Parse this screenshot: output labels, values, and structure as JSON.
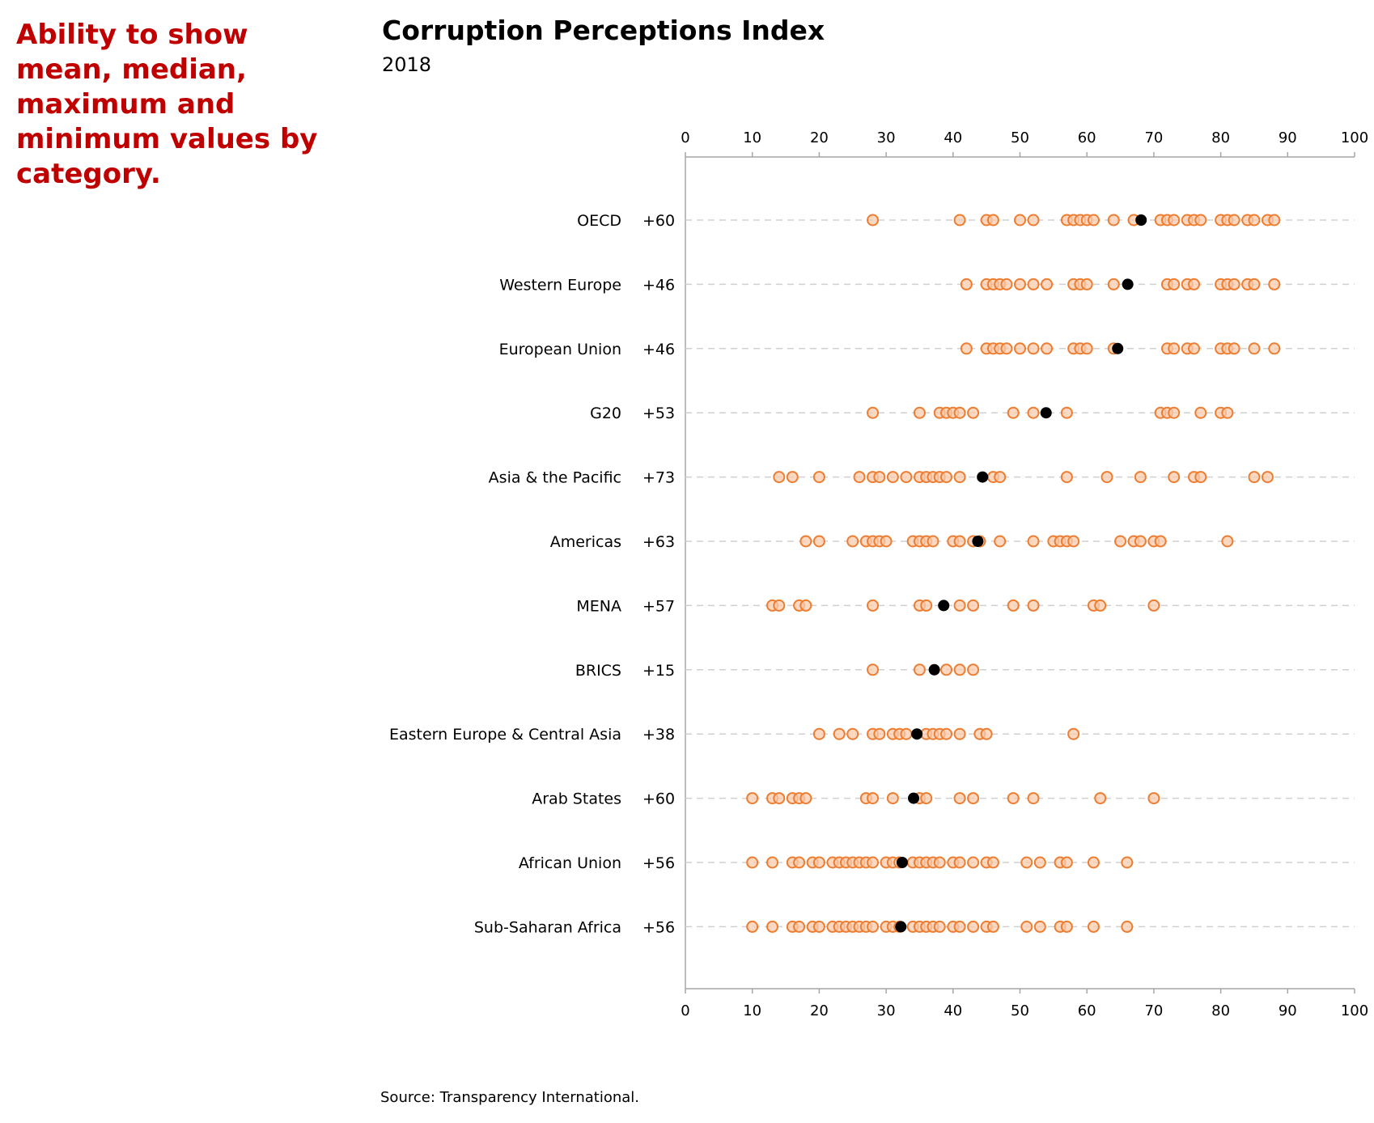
{
  "callout": "Ability to show mean, median, maximum and minimum values by category.",
  "source": "Source: Transparency International.",
  "colors": {
    "callout": "#c00000",
    "point_stroke": "#ed7d31",
    "point_fill": "#f8cbad",
    "mean": "#000000",
    "grid": "#d0d0d0",
    "axis": "#a6a6a6"
  },
  "chart_data": {
    "type": "scatter",
    "title": "Corruption Perceptions Index",
    "subtitle": "2018",
    "xlim": [
      0,
      100
    ],
    "xticks": [
      0,
      10,
      20,
      30,
      40,
      50,
      60,
      70,
      80,
      90,
      100
    ],
    "x_axis_positions": [
      "top",
      "bottom"
    ],
    "grid": "dashed horizontal lines per category",
    "categories": [
      {
        "name": "OECD",
        "range_label": "+60",
        "mean": 68.1,
        "values": [
          28,
          41,
          45,
          46,
          50,
          52,
          57,
          58,
          59,
          60,
          61,
          64,
          67,
          71,
          72,
          73,
          75,
          76,
          77,
          80,
          81,
          82,
          84,
          85,
          87,
          88
        ]
      },
      {
        "name": "Western Europe",
        "range_label": "+46",
        "mean": 66.1,
        "values": [
          42,
          45,
          46,
          47,
          48,
          50,
          52,
          54,
          58,
          59,
          60,
          64,
          72,
          73,
          75,
          76,
          80,
          81,
          82,
          84,
          85,
          88
        ]
      },
      {
        "name": "European Union",
        "range_label": "+46",
        "mean": 64.6,
        "values": [
          42,
          45,
          46,
          47,
          48,
          50,
          52,
          54,
          58,
          59,
          60,
          64,
          72,
          73,
          75,
          76,
          80,
          81,
          82,
          85,
          88
        ]
      },
      {
        "name": "G20",
        "range_label": "+53",
        "mean": 53.9,
        "values": [
          28,
          35,
          38,
          39,
          40,
          41,
          43,
          49,
          52,
          57,
          71,
          72,
          73,
          77,
          80,
          81
        ]
      },
      {
        "name": "Asia & the Pacific",
        "range_label": "+73",
        "mean": 44.4,
        "values": [
          14,
          16,
          20,
          26,
          28,
          29,
          31,
          33,
          35,
          36,
          37,
          38,
          39,
          41,
          46,
          47,
          57,
          63,
          68,
          73,
          76,
          77,
          85,
          87
        ]
      },
      {
        "name": "Americas",
        "range_label": "+63",
        "mean": 43.7,
        "values": [
          18,
          20,
          25,
          27,
          28,
          29,
          30,
          34,
          35,
          36,
          37,
          40,
          41,
          43,
          44,
          47,
          52,
          55,
          56,
          57,
          58,
          65,
          67,
          68,
          70,
          71,
          81
        ]
      },
      {
        "name": "MENA",
        "range_label": "+57",
        "mean": 38.6,
        "values": [
          13,
          14,
          17,
          18,
          28,
          35,
          36,
          41,
          43,
          49,
          52,
          61,
          62,
          70
        ]
      },
      {
        "name": "BRICS",
        "range_label": "+15",
        "mean": 37.2,
        "values": [
          28,
          35,
          39,
          41,
          43
        ]
      },
      {
        "name": "Eastern Europe & Central Asia",
        "range_label": "+38",
        "mean": 34.6,
        "values": [
          20,
          23,
          25,
          28,
          29,
          31,
          32,
          33,
          36,
          37,
          38,
          39,
          41,
          44,
          45,
          58
        ]
      },
      {
        "name": "Arab States",
        "range_label": "+60",
        "mean": 34.1,
        "values": [
          10,
          13,
          14,
          16,
          17,
          18,
          27,
          28,
          31,
          35,
          36,
          41,
          43,
          49,
          52,
          62,
          70
        ]
      },
      {
        "name": "African Union",
        "range_label": "+56",
        "mean": 32.4,
        "values": [
          10,
          13,
          16,
          17,
          19,
          20,
          22,
          23,
          24,
          25,
          26,
          27,
          28,
          30,
          31,
          32,
          34,
          35,
          36,
          37,
          38,
          40,
          41,
          43,
          45,
          46,
          51,
          53,
          56,
          57,
          61,
          66
        ]
      },
      {
        "name": "Sub-Saharan Africa",
        "range_label": "+56",
        "mean": 32.2,
        "values": [
          10,
          13,
          16,
          17,
          19,
          20,
          22,
          23,
          24,
          25,
          26,
          27,
          28,
          30,
          31,
          32,
          34,
          35,
          36,
          37,
          38,
          40,
          41,
          43,
          45,
          46,
          51,
          53,
          56,
          57,
          61,
          66
        ]
      }
    ]
  }
}
